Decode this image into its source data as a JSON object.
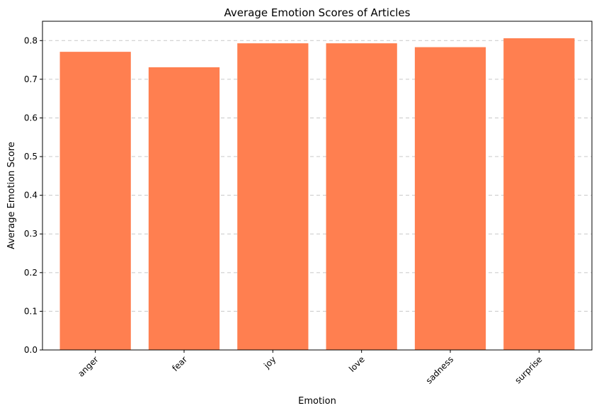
{
  "chart_data": {
    "type": "bar",
    "title": "Average Emotion Scores of Articles",
    "xlabel": "Emotion",
    "ylabel": "Average Emotion Score",
    "categories": [
      "anger",
      "fear",
      "joy",
      "love",
      "sadness",
      "surprise"
    ],
    "values": [
      0.771,
      0.731,
      0.793,
      0.793,
      0.783,
      0.806
    ],
    "ylim": [
      0,
      0.85
    ],
    "yticks": [
      "0.0",
      "0.1",
      "0.2",
      "0.3",
      "0.4",
      "0.5",
      "0.6",
      "0.7",
      "0.8"
    ],
    "grid": "horizontal dashed",
    "bar_color": "#ff7f50",
    "grid_color": "#c8c8c8"
  }
}
